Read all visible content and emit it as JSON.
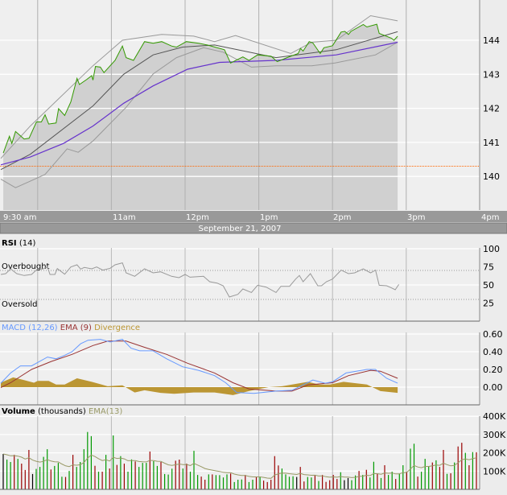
{
  "time_axis": {
    "labels": [
      "9:30 am",
      "11am",
      "12pm",
      "1pm",
      "2pm",
      "3pm",
      "4pm"
    ],
    "date": "September 21, 2007"
  },
  "colors": {
    "close": "#339900",
    "area": "#d0d0d0",
    "bands": "#999999",
    "sma": "#555555",
    "ema": "#6633cc",
    "reference": "#ff6600",
    "rsi": "#999999",
    "macd": "#6699ff",
    "signal": "#993333",
    "divergence": "#bb9633",
    "vol_up": "#009900",
    "vol_down": "#990000",
    "vol_unch": "#000000",
    "vol_ema": "#999966"
  },
  "chart_data": [
    {
      "type": "line",
      "panel": "price",
      "x_unit": "minutes after 9:30 am",
      "ylim": [
        139.2,
        145.2
      ],
      "yticks": [
        140,
        141,
        142,
        143,
        144
      ],
      "grid": true,
      "reference_line": 140.3,
      "series": [
        {
          "key": "close",
          "style": "area",
          "x": [
            2,
            7,
            9,
            12,
            19,
            23,
            29,
            33,
            36,
            39,
            45,
            47,
            52,
            57,
            62,
            64,
            70,
            74,
            75,
            77,
            81,
            84,
            93,
            99,
            102,
            108,
            117,
            124,
            131,
            139,
            143,
            151,
            161,
            168,
            182,
            187,
            197,
            202,
            209,
            220,
            225,
            233,
            242,
            244,
            246,
            251,
            254,
            260,
            263,
            270,
            277,
            280,
            283,
            285,
            295,
            298,
            306,
            308,
            318,
            320,
            323
          ],
          "y": [
            140.69,
            141.18,
            140.97,
            141.32,
            141.1,
            141.12,
            141.6,
            141.6,
            141.81,
            141.54,
            141.57,
            141.99,
            141.79,
            142.19,
            142.88,
            142.7,
            142.85,
            142.96,
            142.83,
            143.23,
            143.21,
            143.05,
            143.41,
            143.83,
            143.49,
            143.41,
            143.96,
            143.91,
            143.96,
            143.83,
            143.8,
            143.96,
            143.91,
            143.86,
            143.72,
            143.33,
            143.51,
            143.41,
            143.57,
            143.53,
            143.37,
            143.49,
            143.61,
            143.76,
            143.68,
            143.96,
            143.92,
            143.61,
            143.78,
            143.84,
            144.24,
            144.26,
            144.17,
            144.26,
            144.46,
            144.39,
            144.47,
            144.2,
            144.06,
            144.0,
            144.12
          ]
        },
        {
          "key": "upper_band",
          "x": [
            0,
            24,
            39,
            75,
            99,
            131,
            157,
            174,
            191,
            236,
            253,
            273,
            301,
            323
          ],
          "y": [
            140.53,
            141.48,
            142.0,
            143.25,
            144.0,
            144.17,
            144.12,
            143.96,
            144.14,
            143.61,
            143.94,
            144.0,
            144.72,
            144.57
          ]
        },
        {
          "key": "lower_band",
          "x": [
            0,
            12,
            24,
            36,
            54,
            63,
            75,
            102,
            124,
            143,
            165,
            181,
            204,
            224,
            253,
            272,
            305,
            323
          ],
          "y": [
            139.92,
            139.67,
            139.86,
            140.06,
            140.81,
            140.71,
            141.04,
            142.03,
            143.01,
            143.49,
            143.78,
            143.65,
            143.21,
            143.25,
            143.25,
            143.33,
            143.57,
            143.94
          ]
        },
        {
          "key": "sma",
          "x": [
            0,
            24,
            75,
            100,
            124,
            148,
            174,
            224,
            273,
            323
          ],
          "y": [
            140.2,
            140.65,
            142.07,
            143.0,
            143.57,
            143.8,
            143.86,
            143.49,
            143.72,
            144.25
          ]
        },
        {
          "key": "ema",
          "x": [
            0,
            24,
            51,
            75,
            100,
            124,
            152,
            178,
            224,
            273,
            323
          ],
          "y": [
            140.34,
            140.57,
            140.97,
            141.48,
            142.15,
            142.66,
            143.15,
            143.35,
            143.41,
            143.57,
            143.94
          ]
        }
      ]
    },
    {
      "type": "line",
      "panel": "rsi",
      "title": "RSI",
      "subtitle": "(14)",
      "ylim": [
        0,
        100
      ],
      "yticks": [
        100,
        75,
        50,
        25
      ],
      "overbought": {
        "label": "Overbought",
        "level": 70
      },
      "oversold": {
        "label": "Oversold",
        "level": 30
      },
      "x": [
        0,
        4,
        8,
        13,
        19,
        25,
        30,
        34,
        38,
        40,
        44,
        46,
        52,
        57,
        62,
        65,
        68,
        74,
        78,
        83,
        89,
        93,
        99,
        102,
        109,
        117,
        124,
        130,
        139,
        145,
        150,
        154,
        165,
        170,
        176,
        181,
        186,
        193,
        197,
        204,
        209,
        216,
        224,
        228,
        235,
        240,
        243,
        246,
        252,
        258,
        261,
        265,
        270,
        277,
        283,
        288,
        295,
        301,
        305,
        308,
        314,
        318,
        321,
        324
      ],
      "y": [
        64.4,
        65.6,
        72.2,
        65.6,
        63.0,
        64.4,
        72.2,
        71.9,
        74.8,
        64.4,
        64.4,
        72.6,
        64.8,
        74.8,
        77.8,
        71.9,
        74.1,
        72.2,
        74.8,
        70.4,
        73.0,
        77.8,
        80.4,
        66.7,
        61.9,
        72.2,
        66.7,
        68.1,
        61.9,
        60.0,
        64.4,
        60.7,
        61.9,
        54.4,
        52.6,
        48.9,
        33.3,
        37.0,
        44.4,
        39.6,
        49.6,
        47.0,
        39.6,
        48.1,
        48.1,
        58.1,
        63.0,
        54.4,
        65.6,
        48.9,
        48.9,
        54.4,
        58.1,
        70.4,
        65.6,
        66.7,
        72.2,
        66.7,
        70.4,
        49.6,
        48.9,
        45.9,
        43.3,
        50.7
      ]
    },
    {
      "type": "line",
      "panel": "macd",
      "legend": [
        {
          "key": "macd",
          "label": "MACD (12,26)"
        },
        {
          "key": "signal",
          "label": "EMA (9)"
        },
        {
          "key": "divergence",
          "label": "Divergence"
        }
      ],
      "ylim": [
        -0.1,
        0.65
      ],
      "yticks": [
        "0.60",
        "0.40",
        "0.20",
        "0.00"
      ],
      "series": [
        {
          "key": "macd",
          "x": [
            0,
            8,
            16,
            25,
            38,
            45,
            52,
            58,
            65,
            71,
            81,
            89,
            99,
            106,
            113,
            124,
            135,
            148,
            161,
            174,
            183,
            192,
            206,
            224,
            237,
            254,
            264,
            270,
            281,
            298,
            305,
            314,
            323
          ],
          "y": [
            0.045,
            0.16,
            0.24,
            0.24,
            0.34,
            0.32,
            0.36,
            0.4,
            0.49,
            0.53,
            0.54,
            0.51,
            0.54,
            0.44,
            0.41,
            0.41,
            0.32,
            0.23,
            0.19,
            0.13,
            0.05,
            -0.06,
            -0.07,
            -0.045,
            -0.035,
            0.08,
            0.045,
            0.06,
            0.16,
            0.2,
            0.2,
            0.1,
            0.045
          ]
        },
        {
          "key": "signal",
          "x": [
            0,
            8,
            25,
            41,
            58,
            75,
            87,
            102,
            117,
            135,
            152,
            174,
            189,
            202,
            224,
            237,
            250,
            270,
            283,
            301,
            309,
            323
          ],
          "y": [
            -0.005,
            0.05,
            0.2,
            0.29,
            0.37,
            0.47,
            0.52,
            0.52,
            0.45,
            0.37,
            0.27,
            0.16,
            0.05,
            -0.02,
            -0.045,
            -0.045,
            0.025,
            0.05,
            0.13,
            0.19,
            0.18,
            0.1
          ]
        },
        {
          "key": "divergence",
          "style": "area",
          "x": [
            0,
            10,
            19,
            27,
            30,
            39,
            45,
            52,
            62,
            74,
            87,
            99,
            109,
            117,
            130,
            141,
            157,
            174,
            189,
            202,
            218,
            229,
            250,
            259,
            268,
            279,
            298,
            309,
            323
          ],
          "y": [
            0.05,
            0.11,
            0.08,
            0.05,
            0.07,
            0.07,
            0.03,
            0.03,
            0.1,
            0.06,
            0.01,
            0.02,
            -0.06,
            -0.035,
            -0.065,
            -0.075,
            -0.06,
            -0.06,
            -0.09,
            -0.045,
            0,
            0.01,
            0.06,
            0.03,
            0.03,
            0.06,
            0.03,
            -0.045,
            -0.065
          ]
        }
      ]
    },
    {
      "type": "bar",
      "panel": "volume",
      "title": "Volume",
      "subtitle": "(thousands)",
      "overlay_label": "EMA(13)",
      "ylim": [
        0,
        400
      ],
      "yticks": [
        "400K",
        "300K",
        "200K",
        "100K"
      ],
      "values": [
        194,
        163,
        150,
        189,
        167,
        141,
        106,
        216,
        84,
        112,
        123,
        178,
        220,
        109,
        128,
        145,
        69,
        68,
        101,
        189,
        123,
        150,
        220,
        314,
        291,
        129,
        97,
        97,
        189,
        114,
        295,
        134,
        182,
        141,
        97,
        164,
        153,
        123,
        145,
        145,
        207,
        154,
        128,
        150,
        84,
        81,
        113,
        157,
        163,
        114,
        141,
        97,
        211,
        79,
        70,
        53,
        82,
        82,
        78,
        78,
        65,
        82,
        87,
        40,
        53,
        54,
        79,
        40,
        53,
        68,
        68,
        48,
        40,
        53,
        182,
        131,
        114,
        82,
        69,
        72,
        68,
        123,
        43,
        68,
        65,
        79,
        46,
        79,
        41,
        50,
        79,
        57,
        94,
        50,
        62,
        50,
        76,
        101,
        79,
        107,
        65,
        151,
        85,
        62,
        132,
        79,
        97,
        57,
        87,
        132,
        97,
        223,
        250,
        70,
        97,
        167,
        126,
        147,
        159,
        123,
        216,
        85,
        88,
        147,
        235,
        255,
        200,
        132,
        204,
        203
      ],
      "direction": [
        "unch",
        "up",
        "up",
        "down",
        "up",
        "down",
        "down",
        "down",
        "unch",
        "up",
        "up",
        "up",
        "up",
        "down",
        "up",
        "up",
        "up",
        "down",
        "up",
        "down",
        "up",
        "up",
        "up",
        "up",
        "up",
        "down",
        "up",
        "down",
        "up",
        "down",
        "up",
        "down",
        "up",
        "down",
        "up",
        "up",
        "down",
        "up",
        "up",
        "up",
        "down",
        "up",
        "up",
        "down",
        "up",
        "up",
        "up",
        "down",
        "down",
        "up",
        "down",
        "up",
        "up",
        "up",
        "down",
        "down",
        "up",
        "down",
        "up",
        "up",
        "up",
        "up",
        "down",
        "up",
        "up",
        "up",
        "down",
        "up",
        "up",
        "down",
        "up",
        "down",
        "down",
        "down",
        "down",
        "down",
        "up",
        "up",
        "up",
        "up",
        "unch",
        "down",
        "down",
        "up",
        "up",
        "down",
        "up",
        "down",
        "down",
        "down",
        "down",
        "down",
        "up",
        "unch",
        "unch",
        "up",
        "up",
        "down",
        "up",
        "down",
        "up",
        "up",
        "down",
        "up",
        "down",
        "up",
        "up",
        "down",
        "up",
        "up",
        "down",
        "up",
        "up",
        "down",
        "up",
        "up",
        "up",
        "down",
        "up",
        "down",
        "down",
        "up",
        "down",
        "up",
        "down",
        "down",
        "up",
        "down",
        "up",
        "down"
      ]
    }
  ]
}
